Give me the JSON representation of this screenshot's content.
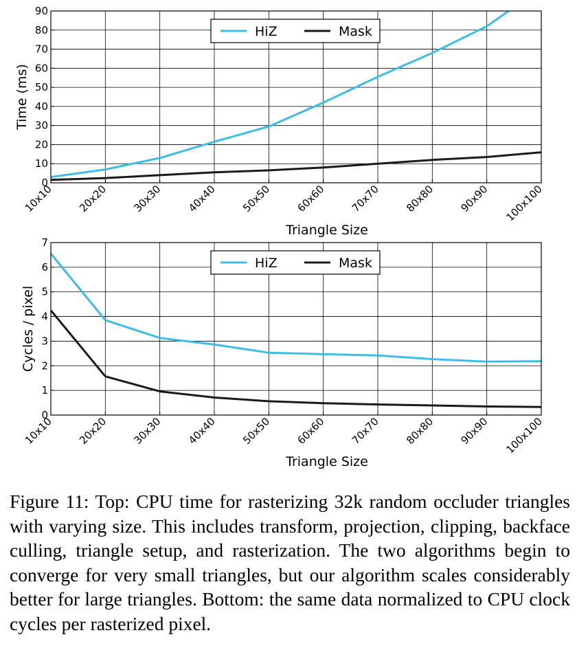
{
  "chart_data": [
    {
      "type": "line",
      "categories": [
        "10x10",
        "20x20",
        "30x30",
        "40x40",
        "50x50",
        "60x60",
        "70x70",
        "80x80",
        "90x90",
        "100x100"
      ],
      "series": [
        {
          "name": "HiZ",
          "color": "#3cbde8",
          "values": [
            3,
            7,
            13,
            21.5,
            29.5,
            42,
            55.5,
            68,
            82,
            102
          ]
        },
        {
          "name": "Mask",
          "color": "#1a1a1a",
          "values": [
            1.5,
            2.5,
            4,
            5.5,
            6.5,
            8,
            10,
            12,
            13.5,
            16
          ]
        }
      ],
      "xlabel": "Triangle Size",
      "ylabel": "Time (ms)",
      "ylim": [
        0,
        90
      ],
      "yticks": [
        0,
        10,
        20,
        30,
        40,
        50,
        60,
        70,
        80,
        90
      ],
      "grid": true,
      "legend_position": "top-center"
    },
    {
      "type": "line",
      "categories": [
        "10x10",
        "20x20",
        "30x30",
        "40x40",
        "50x50",
        "60x60",
        "70x70",
        "80x80",
        "90x90",
        "100x100"
      ],
      "series": [
        {
          "name": "HiZ",
          "color": "#3cbde8",
          "values": [
            6.55,
            3.85,
            3.13,
            2.86,
            2.53,
            2.47,
            2.42,
            2.27,
            2.17,
            2.18
          ]
        },
        {
          "name": "Mask",
          "color": "#1a1a1a",
          "values": [
            4.25,
            1.57,
            0.96,
            0.71,
            0.56,
            0.48,
            0.43,
            0.39,
            0.35,
            0.33
          ]
        }
      ],
      "xlabel": "Triangle Size",
      "ylabel": "Cycles / pixel",
      "ylim": [
        0,
        7
      ],
      "yticks": [
        0,
        1,
        2,
        3,
        4,
        5,
        6,
        7
      ],
      "grid": true,
      "legend_position": "top-center"
    }
  ],
  "caption": "Figure 11: Top: CPU time for rasterizing 32k random occluder tri­angles with varying size. This includes transform, projection, clip­ping, backface culling, triangle setup, and rasterization. The two algorithms begin to converge for very small triangles, but our al­gorithm scales considerably better for large triangles. Bottom: the same data normalized to CPU clock cycles per rasterized pixel."
}
